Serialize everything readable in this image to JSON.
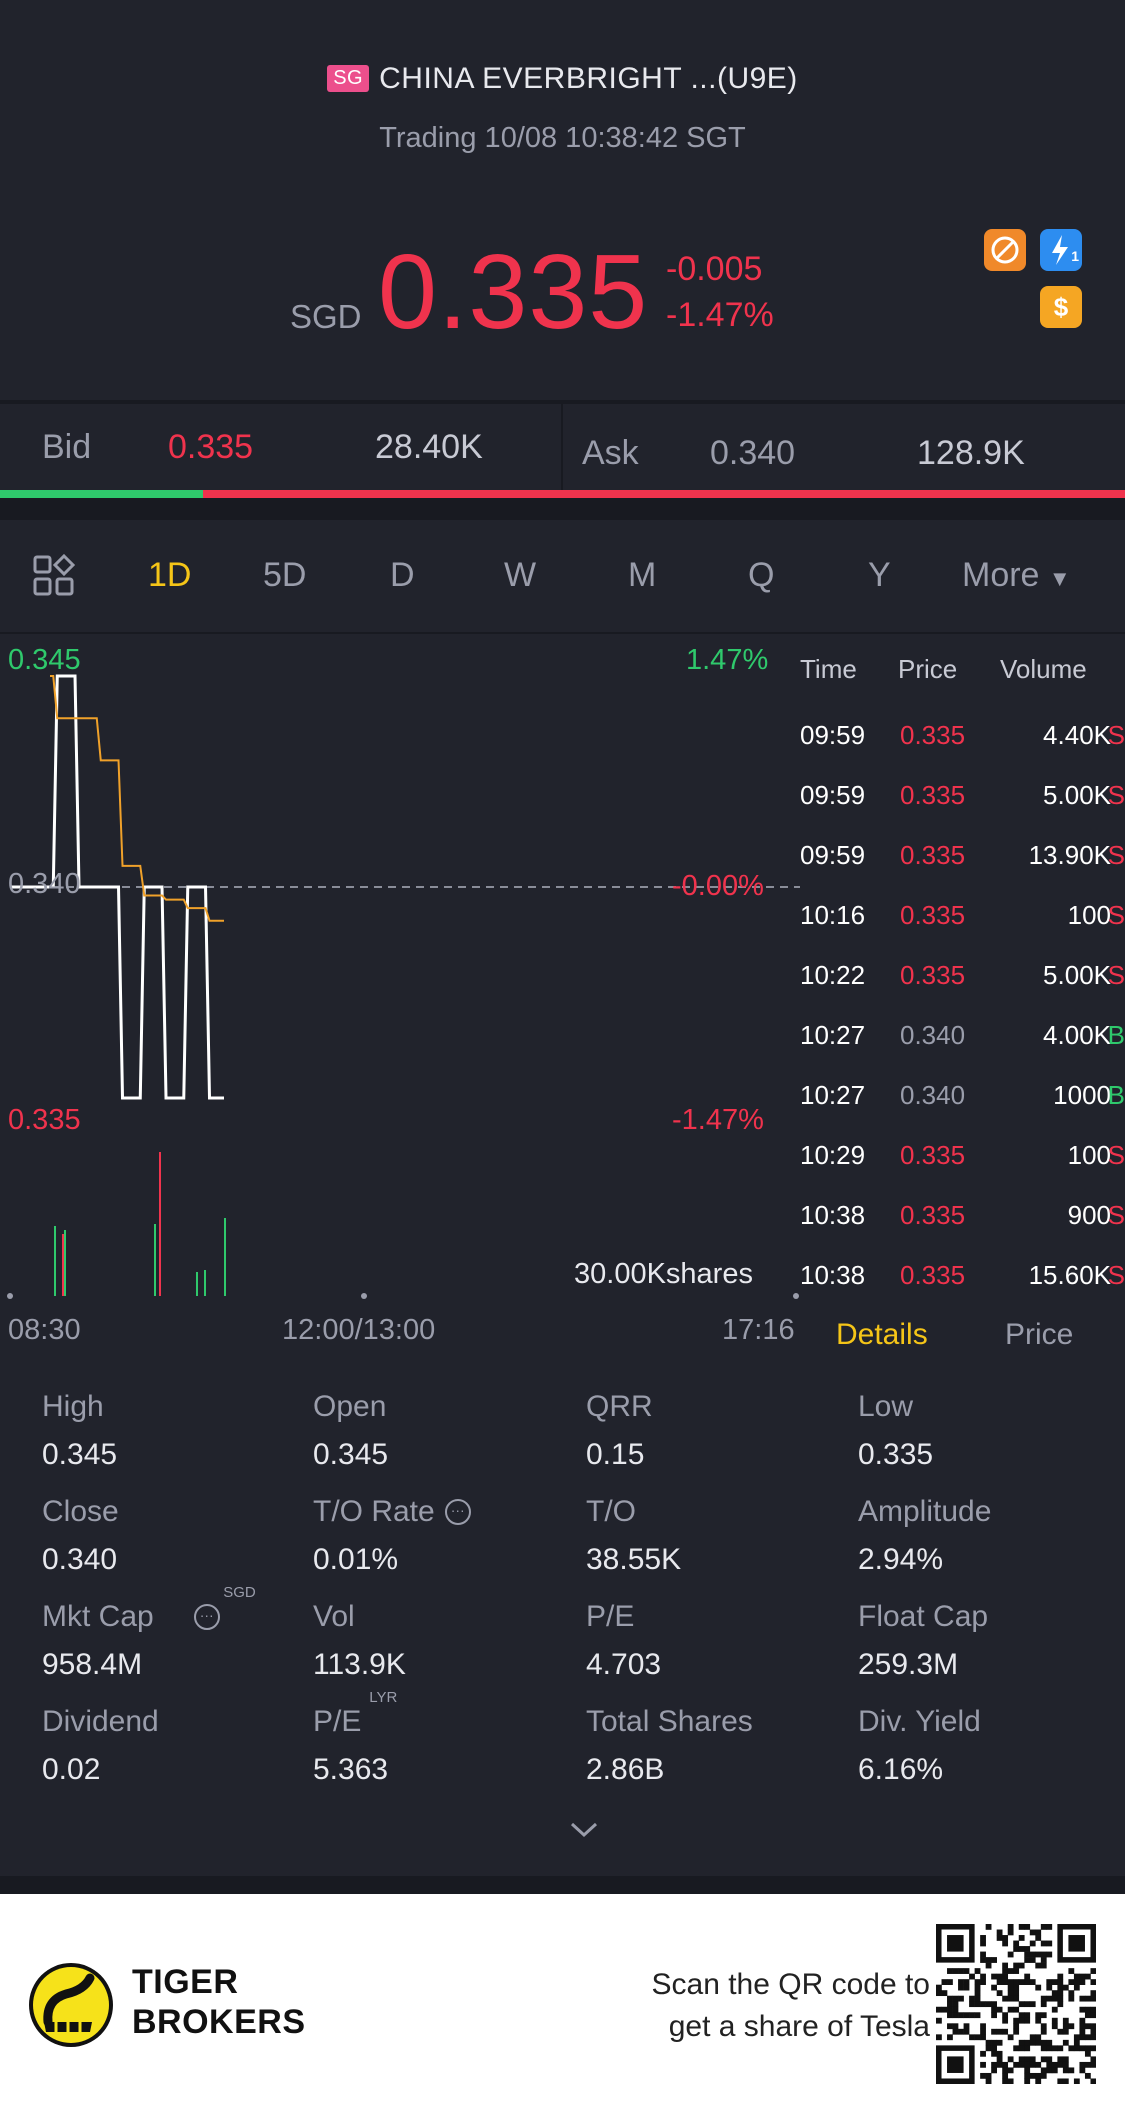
{
  "header": {
    "market_badge": "SG",
    "title": "CHINA EVERBRIGHT ...(U9E)",
    "status": "Trading 10/08 10:38:42 SGT",
    "currency": "SGD",
    "price": "0.335",
    "change": "-0.005",
    "change_pct": "-1.47%",
    "icons": [
      "no-short-icon",
      "lightning-icon",
      "dollar-icon"
    ],
    "lightning_sub": "1"
  },
  "bidask": {
    "bid_label": "Bid",
    "bid_price": "0.335",
    "bid_size": "28.40K",
    "ask_label": "Ask",
    "ask_price": "0.340",
    "ask_size": "128.9K",
    "bid_ratio": 0.18
  },
  "tabs": {
    "items": [
      "1D",
      "5D",
      "D",
      "W",
      "M",
      "Q",
      "Y"
    ],
    "active": "1D",
    "more": "More"
  },
  "chart": {
    "y_high": "0.345",
    "y_mid": "0.340",
    "y_low": "0.335",
    "pct_high": "1.47%",
    "pct_mid": "-0.00%",
    "pct_low": "-1.47%",
    "volume_label": "30.00Kshares",
    "x_start": "08:30",
    "x_mid": "12:00/13:00",
    "x_end": "17:16"
  },
  "chart_data": {
    "type": "line",
    "ylim": [
      0.335,
      0.345
    ],
    "series": [
      {
        "values": [
          0.34,
          0.345,
          0.34,
          0.34,
          0.335,
          0.34,
          0.335,
          0.34,
          0.335
        ]
      },
      {
        "values": [
          0.345,
          0.344,
          0.344,
          0.343,
          0.3405,
          0.3398,
          0.3397,
          0.3395,
          0.3392
        ]
      }
    ]
  },
  "ticks": {
    "headers": {
      "time": "Time",
      "price": "Price",
      "volume": "Volume"
    },
    "rows": [
      {
        "time": "09:59",
        "price": "0.335",
        "vol": "4.40K",
        "side": "S"
      },
      {
        "time": "09:59",
        "price": "0.335",
        "vol": "5.00K",
        "side": "S"
      },
      {
        "time": "09:59",
        "price": "0.335",
        "vol": "13.90K",
        "side": "S"
      },
      {
        "time": "10:16",
        "price": "0.335",
        "vol": "100",
        "side": "S"
      },
      {
        "time": "10:22",
        "price": "0.335",
        "vol": "5.00K",
        "side": "S"
      },
      {
        "time": "10:27",
        "price": "0.340",
        "vol": "4.00K",
        "side": "B"
      },
      {
        "time": "10:27",
        "price": "0.340",
        "vol": "1000",
        "side": "B"
      },
      {
        "time": "10:29",
        "price": "0.335",
        "vol": "100",
        "side": "S"
      },
      {
        "time": "10:38",
        "price": "0.335",
        "vol": "900",
        "side": "S"
      },
      {
        "time": "10:38",
        "price": "0.335",
        "vol": "15.60K",
        "side": "S"
      }
    ],
    "tab_details": "Details",
    "tab_price": "Price"
  },
  "stats": {
    "items": [
      {
        "label": "High",
        "value": "0.345"
      },
      {
        "label": "Open",
        "value": "0.345"
      },
      {
        "label": "QRR",
        "value": "0.15"
      },
      {
        "label": "Low",
        "value": "0.335"
      },
      {
        "label": "Close",
        "value": "0.340"
      },
      {
        "label": "T/O Rate",
        "value": "0.01%"
      },
      {
        "label": "T/O",
        "value": "38.55K"
      },
      {
        "label": "Amplitude",
        "value": "2.94%"
      },
      {
        "label": "Mkt Cap",
        "value": "958.4M",
        "sup": "SGD"
      },
      {
        "label": "Vol",
        "value": "113.9K"
      },
      {
        "label": "P/E",
        "value": "4.703"
      },
      {
        "label": "Float Cap",
        "value": "259.3M"
      },
      {
        "label": "Dividend",
        "value": "0.02"
      },
      {
        "label": "P/E",
        "value": "5.363",
        "sup": "LYR"
      },
      {
        "label": "Total Shares",
        "value": "2.86B"
      },
      {
        "label": "Div. Yield",
        "value": "6.16%"
      }
    ]
  },
  "footer": {
    "brand_line1": "TIGER",
    "brand_line2": "BROKERS",
    "scan_line1": "Scan the QR code to",
    "scan_line2": "get a share of Tesla"
  },
  "colors": {
    "up": "#2fc96c",
    "down": "#f0334d",
    "accent": "#f5c518",
    "bg": "#21232c"
  }
}
